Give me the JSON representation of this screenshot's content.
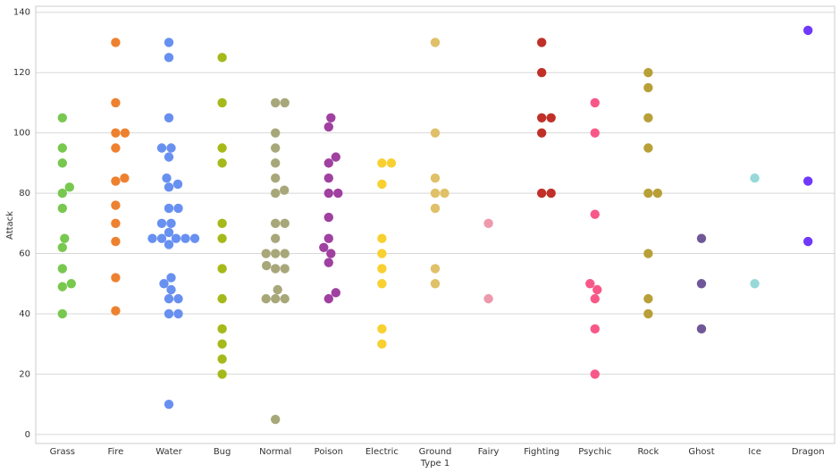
{
  "chart_data": {
    "type": "swarm",
    "x_label": "Type 1",
    "y_label": "Attack",
    "categories": [
      "Grass",
      "Fire",
      "Water",
      "Bug",
      "Normal",
      "Poison",
      "Electric",
      "Ground",
      "Fairy",
      "Fighting",
      "Psychic",
      "Rock",
      "Ghost",
      "Ice",
      "Dragon"
    ],
    "colors": [
      "#78c850",
      "#ee8130",
      "#6890f0",
      "#a6b91a",
      "#a8a77a",
      "#a040a0",
      "#f8d030",
      "#e0c068",
      "#ee99ac",
      "#c03028",
      "#f85888",
      "#b8a038",
      "#705898",
      "#98d8d8",
      "#7038f8"
    ],
    "values": [
      [
        49,
        62,
        82,
        50,
        65,
        80,
        75,
        90,
        105,
        40,
        95,
        55
      ],
      [
        52,
        64,
        84,
        41,
        76,
        70,
        110,
        85,
        100,
        95,
        130,
        100
      ],
      [
        48,
        63,
        83,
        52,
        82,
        50,
        65,
        95,
        40,
        70,
        65,
        75,
        45,
        70,
        65,
        95,
        105,
        130,
        40,
        65,
        67,
        92,
        45,
        75,
        10,
        125,
        85,
        65
      ],
      [
        30,
        20,
        45,
        35,
        25,
        90,
        70,
        95,
        55,
        65,
        110,
        125
      ],
      [
        45,
        60,
        80,
        56,
        81,
        60,
        90,
        45,
        70,
        45,
        70,
        65,
        85,
        110,
        55,
        5,
        95,
        100,
        48,
        55,
        60,
        110
      ],
      [
        60,
        85,
        47,
        62,
        92,
        57,
        72,
        102,
        45,
        80,
        80,
        105,
        65,
        90
      ],
      [
        55,
        90,
        35,
        60,
        30,
        50,
        83,
        65,
        90
      ],
      [
        75,
        100,
        55,
        80,
        50,
        80,
        85,
        130
      ],
      [
        45,
        70
      ],
      [
        80,
        105,
        80,
        100,
        130,
        120,
        105
      ],
      [
        20,
        35,
        50,
        48,
        73,
        45,
        110,
        100
      ],
      [
        80,
        95,
        120,
        45,
        40,
        60,
        80,
        115,
        105
      ],
      [
        35,
        50,
        65
      ],
      [
        50,
        85
      ],
      [
        64,
        84,
        134
      ]
    ],
    "ylim": [
      -3,
      142
    ],
    "yticks": [
      0,
      20,
      40,
      60,
      80,
      100,
      120,
      140
    ],
    "grid": true
  }
}
